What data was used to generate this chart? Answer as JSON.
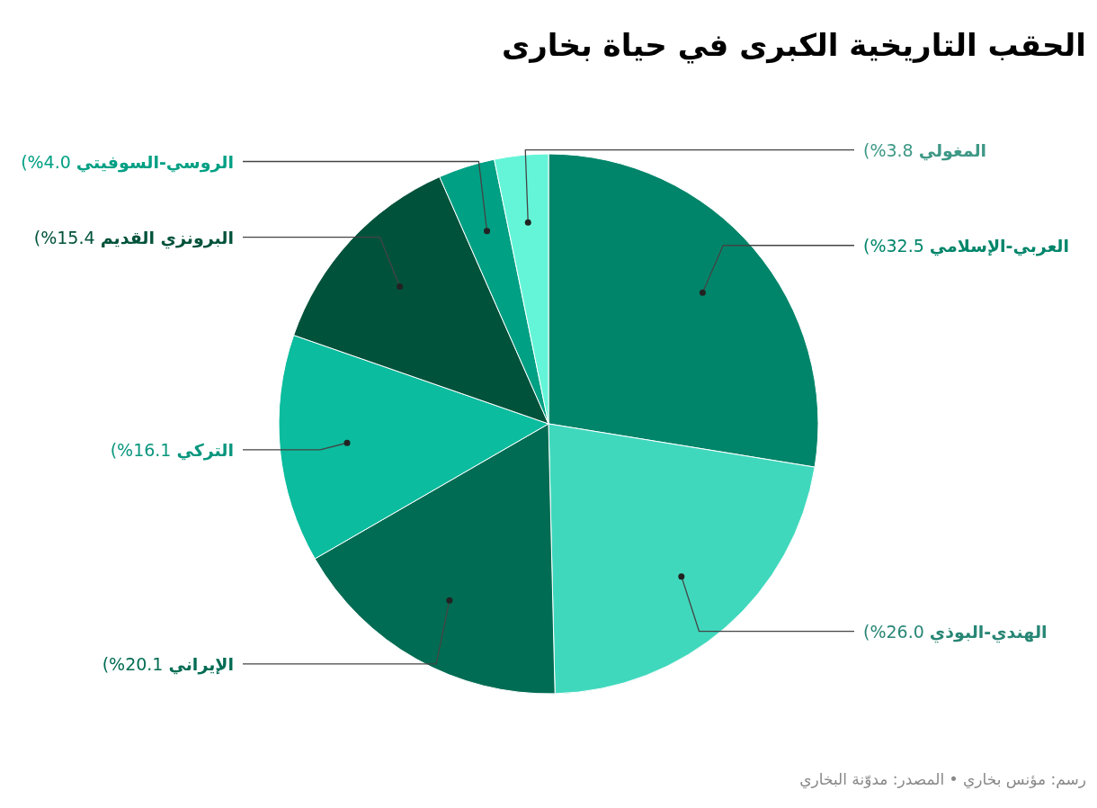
{
  "chart_data": {
    "type": "pie",
    "title": "الحقب التاريخية الكبرى في حياة بخارى",
    "categories": [
      "العربي-الإسلامي",
      "الهندي-البوذي",
      "الإيراني",
      "التركي",
      "البرونزي القديم",
      "الروسي-السوفيتي",
      "المغولي"
    ],
    "values": [
      32.5,
      26.0,
      20.1,
      16.1,
      15.4,
      4.0,
      3.8
    ],
    "value_labels": [
      "(%32.5",
      "(%26.0",
      "(%20.1",
      "(%16.1",
      "(%15.4",
      "(%4.0",
      "(%3.8"
    ],
    "colors": [
      "#00856a",
      "#40d8bd",
      "#006c53",
      "#0bbc9e",
      "#00523b",
      "#00a084",
      "#64f5d8"
    ],
    "annotations": [
      "رسم: مؤنس بخاري • المصدر: مدوّنة البخاري"
    ]
  }
}
